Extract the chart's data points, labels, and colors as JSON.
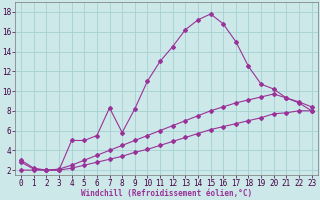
{
  "xlabel": "Windchill (Refroidissement éolien,°C)",
  "background_color": "#cce8e8",
  "grid_color": "#aad4d4",
  "line_color": "#993399",
  "x_ticks": [
    0,
    1,
    2,
    3,
    4,
    5,
    6,
    7,
    8,
    9,
    10,
    11,
    12,
    13,
    14,
    15,
    16,
    17,
    18,
    19,
    20,
    21,
    22,
    23
  ],
  "y_ticks": [
    2,
    4,
    6,
    8,
    10,
    12,
    14,
    16,
    18
  ],
  "xlim": [
    -0.5,
    23.5
  ],
  "ylim": [
    1.5,
    19.0
  ],
  "curve1_x": [
    0,
    1,
    2,
    3,
    4,
    5,
    6,
    7,
    8,
    9,
    10,
    11,
    12,
    13,
    14,
    15,
    16,
    17,
    18,
    19,
    20,
    21,
    22,
    23
  ],
  "curve1_y": [
    3.0,
    2.2,
    2.0,
    2.0,
    5.0,
    5.0,
    5.5,
    8.3,
    5.8,
    8.2,
    11.0,
    13.0,
    14.5,
    16.2,
    17.2,
    17.8,
    16.8,
    15.0,
    12.5,
    10.7,
    10.2,
    9.3,
    8.8,
    8.0
  ],
  "curve2_x": [
    0,
    1,
    2,
    3,
    4,
    5,
    6,
    7,
    8,
    9,
    10,
    11,
    12,
    13,
    14,
    15,
    16,
    17,
    18,
    19,
    20,
    21,
    22,
    23
  ],
  "curve2_y": [
    2.8,
    2.1,
    2.0,
    2.1,
    2.5,
    3.0,
    3.5,
    4.0,
    4.5,
    5.0,
    5.5,
    6.0,
    6.5,
    7.0,
    7.5,
    8.0,
    8.4,
    8.8,
    9.1,
    9.4,
    9.7,
    9.3,
    8.9,
    8.4
  ],
  "curve3_x": [
    0,
    1,
    2,
    3,
    4,
    5,
    6,
    7,
    8,
    9,
    10,
    11,
    12,
    13,
    14,
    15,
    16,
    17,
    18,
    19,
    20,
    21,
    22,
    23
  ],
  "curve3_y": [
    2.0,
    2.0,
    2.0,
    2.0,
    2.2,
    2.5,
    2.8,
    3.1,
    3.4,
    3.8,
    4.1,
    4.5,
    4.9,
    5.3,
    5.7,
    6.1,
    6.4,
    6.7,
    7.0,
    7.3,
    7.7,
    7.8,
    8.0,
    8.0
  ],
  "tick_fontsize": 5.5,
  "xlabel_fontsize": 5.5
}
